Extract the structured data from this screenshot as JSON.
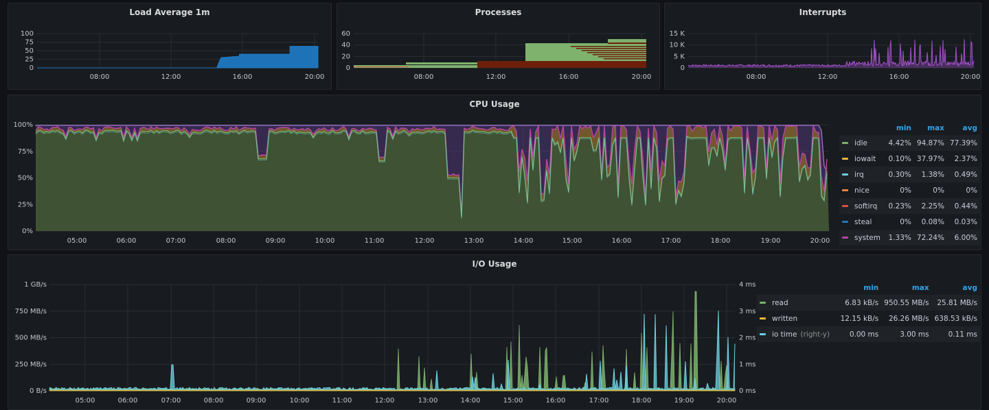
{
  "panels": {
    "load": {
      "title": "Load Average 1m",
      "chart_data": {
        "type": "area",
        "x_ticks": [
          "08:00",
          "12:00",
          "16:00",
          "20:00"
        ],
        "y_ticks": [
          "100",
          "75",
          "50",
          "25",
          "0"
        ],
        "series": [
          {
            "color": "#1f78c1",
            "values": [
              [
                0,
                0
              ],
              [
                0.64,
                0
              ],
              [
                0.645,
                12
              ],
              [
                0.655,
                30
              ],
              [
                0.72,
                34
              ],
              [
                0.72,
                40
              ],
              [
                0.9,
                40
              ],
              [
                0.9,
                63
              ],
              [
                1,
                63
              ]
            ]
          }
        ]
      }
    },
    "processes": {
      "title": "Processes",
      "chart_data": {
        "type": "area",
        "x_ticks": [
          "08:00",
          "12:00",
          "16:00",
          "20:00"
        ],
        "y_ticks": [
          "60",
          "40",
          "20",
          "0"
        ]
      }
    },
    "interrupts": {
      "title": "Interrupts",
      "chart_data": {
        "type": "line",
        "x_ticks": [
          "08:00",
          "12:00",
          "16:00",
          "20:00"
        ],
        "y_ticks": [
          "15 K",
          "10 K",
          "5 K",
          "0"
        ],
        "color": "#a352cc"
      }
    },
    "cpu": {
      "title": "CPU Usage",
      "chart_data": {
        "type": "area",
        "y_ticks": [
          "100%",
          "75%",
          "50%",
          "25%",
          "0%"
        ],
        "x_ticks": [
          "05:00",
          "06:00",
          "07:00",
          "08:00",
          "09:00",
          "10:00",
          "11:00",
          "12:00",
          "13:00",
          "14:00",
          "15:00",
          "16:00",
          "17:00",
          "18:00",
          "19:00",
          "20:00"
        ]
      },
      "legend": {
        "headers": [
          "min",
          "max",
          "avg"
        ],
        "rows": [
          {
            "name": "idle",
            "color": "#7eb26d",
            "min": "4.42%",
            "max": "94.87%",
            "avg": "77.39%"
          },
          {
            "name": "iowait",
            "color": "#eab839",
            "min": "0.10%",
            "max": "37.97%",
            "avg": "2.37%"
          },
          {
            "name": "irq",
            "color": "#6ed0e0",
            "min": "0.30%",
            "max": "1.38%",
            "avg": "0.49%"
          },
          {
            "name": "nice",
            "color": "#ef843c",
            "min": "0%",
            "max": "0%",
            "avg": "0%"
          },
          {
            "name": "softirq",
            "color": "#e24d42",
            "min": "0.23%",
            "max": "2.25%",
            "avg": "0.44%"
          },
          {
            "name": "steal",
            "color": "#1f78c1",
            "min": "0%",
            "max": "0.08%",
            "avg": "0.03%"
          },
          {
            "name": "system",
            "color": "#ba43a9",
            "min": "1.33%",
            "max": "72.24%",
            "avg": "6.00%"
          }
        ]
      }
    },
    "io": {
      "title": "I/O Usage",
      "chart_data": {
        "type": "line",
        "y_ticks_left": [
          "1 GB/s",
          "750 MB/s",
          "500 MB/s",
          "250 MB/s",
          "0 B/s"
        ],
        "y_ticks_right": [
          "4 ms",
          "3 ms",
          "2 ms",
          "1 ms",
          "0 ms"
        ],
        "x_ticks": [
          "05:00",
          "06:00",
          "07:00",
          "08:00",
          "09:00",
          "10:00",
          "11:00",
          "12:00",
          "13:00",
          "14:00",
          "15:00",
          "16:00",
          "17:00",
          "18:00",
          "19:00",
          "20:00"
        ]
      },
      "legend": {
        "headers": [
          "min",
          "max",
          "avg"
        ],
        "rows": [
          {
            "name": "read",
            "suffix": "",
            "color": "#7eb26d",
            "min": "6.83 kB/s",
            "max": "950.55 MB/s",
            "avg": "25.81 MB/s"
          },
          {
            "name": "written",
            "suffix": "",
            "color": "#eab839",
            "min": "12.15 kB/s",
            "max": "26.26 MB/s",
            "avg": "638.53 kB/s"
          },
          {
            "name": "io time",
            "suffix": "(right-y)",
            "color": "#6ed0e0",
            "min": "0.00 ms",
            "max": "3.00 ms",
            "avg": "0.11 ms"
          }
        ]
      }
    }
  }
}
